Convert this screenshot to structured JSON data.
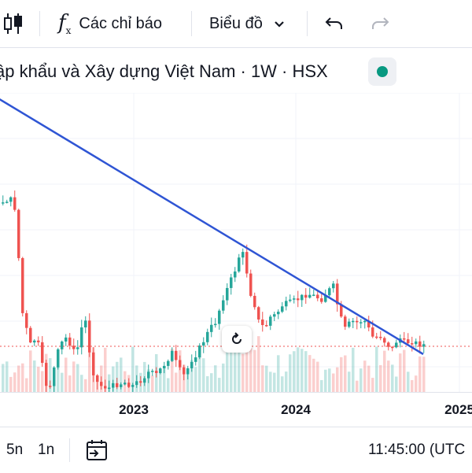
{
  "toolbar": {
    "indicators_label": "Các chỉ báo",
    "chart_type_label": "Biểu đồ",
    "icons": [
      "candles-icon",
      "fx-icon",
      "chevron-down-icon",
      "undo-icon",
      "redo-icon"
    ]
  },
  "legend": {
    "title": "ập khẩu và Xây dựng Việt Nam · 1W · HSX",
    "status_color": "#089981"
  },
  "chart_data": {
    "type": "candlestick",
    "x_ticks": [
      "2023",
      "2024",
      "2025"
    ],
    "colors": {
      "up": "#26a69a",
      "down": "#ef5350",
      "trendline": "#2f55d4"
    },
    "trendline": "descending",
    "grid": true
  },
  "bottombar": {
    "range_5n": "5n",
    "range_1n": "1n",
    "time": "11:45:00 (UTC"
  }
}
